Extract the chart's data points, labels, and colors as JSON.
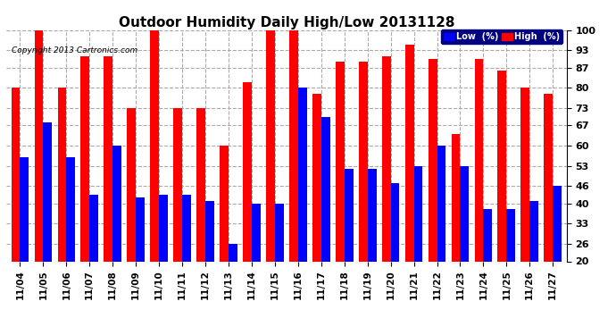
{
  "title": "Outdoor Humidity Daily High/Low 20131128",
  "copyright": "Copyright 2013 Cartronics.com",
  "dates": [
    "11/04",
    "11/05",
    "11/06",
    "11/07",
    "11/08",
    "11/09",
    "11/10",
    "11/11",
    "11/12",
    "11/13",
    "11/14",
    "11/15",
    "11/16",
    "11/17",
    "11/18",
    "11/19",
    "11/20",
    "11/21",
    "11/22",
    "11/23",
    "11/24",
    "11/25",
    "11/26",
    "11/27"
  ],
  "high": [
    80,
    100,
    80,
    91,
    91,
    73,
    100,
    73,
    73,
    60,
    82,
    100,
    100,
    78,
    89,
    89,
    91,
    95,
    90,
    64,
    90,
    86,
    80,
    78
  ],
  "low": [
    56,
    68,
    56,
    43,
    60,
    42,
    43,
    43,
    41,
    26,
    40,
    40,
    80,
    70,
    52,
    52,
    47,
    53,
    60,
    53,
    38,
    38,
    41,
    46
  ],
  "high_color": "#ff0000",
  "low_color": "#0000ff",
  "bg_color": "#ffffff",
  "grid_color": "#aaaaaa",
  "ylim": [
    20,
    100
  ],
  "yticks": [
    20,
    26,
    33,
    40,
    46,
    53,
    60,
    67,
    73,
    80,
    87,
    93,
    100
  ],
  "bar_width": 0.38
}
